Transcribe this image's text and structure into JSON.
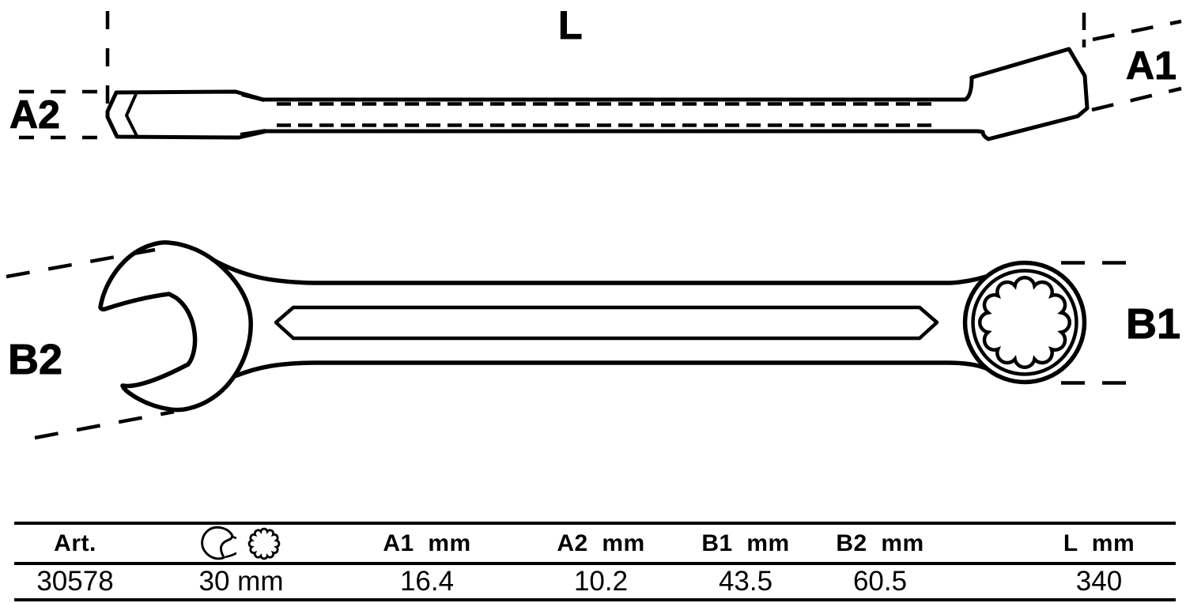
{
  "drawing": {
    "side_view": {
      "length_label": "L",
      "a1_label": "A1",
      "a2_label": "A2"
    },
    "top_view": {
      "b1_label": "B1",
      "b2_label": "B2"
    }
  },
  "table": {
    "columns": [
      {
        "header": "Art.",
        "value": "30578"
      },
      {
        "header_icons": [
          "open-end-wrench-icon",
          "12-point-ring-icon"
        ],
        "value": "30 mm"
      },
      {
        "header": "A1  mm",
        "value": "16.4"
      },
      {
        "header": "A2  mm",
        "value": "10.2"
      },
      {
        "header": "B1  mm",
        "value": "43.5"
      },
      {
        "header": "B2  mm",
        "value": "60.5"
      },
      {
        "header": "L  mm",
        "value": "340"
      }
    ]
  },
  "colors": {
    "ink": "#000000",
    "background": "#ffffff"
  }
}
